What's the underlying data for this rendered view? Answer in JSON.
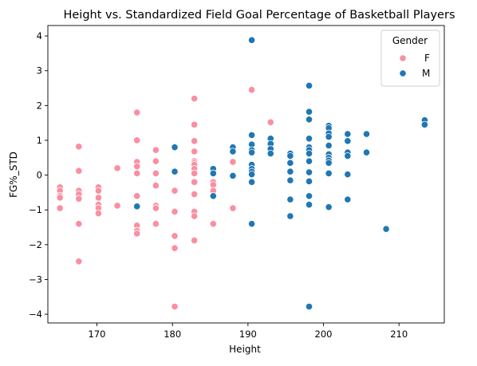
{
  "chart_data": {
    "type": "scatter",
    "title": "Height vs. Standardized Field Goal Percentage of Basketball Players",
    "xlabel": "Height",
    "ylabel": "FG%_STD",
    "xlim": [
      163.5,
      216.0
    ],
    "ylim": [
      -4.25,
      4.3
    ],
    "xticks": [
      170,
      180,
      190,
      200,
      210
    ],
    "yticks": [
      -4,
      -3,
      -2,
      -1,
      0,
      1,
      2,
      3,
      4
    ],
    "grid": false,
    "legend": {
      "title": "Gender",
      "placement": "top-right",
      "entries": [
        {
          "label": "F",
          "color": "#fa8fa1"
        },
        {
          "label": "M",
          "color": "#1f77b4"
        }
      ]
    },
    "series": [
      {
        "name": "F",
        "color": "#fa8fa1",
        "points": [
          [
            165.1,
            -0.35
          ],
          [
            165.1,
            -0.45
          ],
          [
            165.1,
            -0.6
          ],
          [
            165.1,
            -0.65
          ],
          [
            165.1,
            -0.95
          ],
          [
            167.6,
            0.82
          ],
          [
            167.6,
            0.12
          ],
          [
            167.6,
            -0.45
          ],
          [
            167.6,
            -0.55
          ],
          [
            167.6,
            -0.68
          ],
          [
            167.6,
            -1.4
          ],
          [
            167.6,
            -2.48
          ],
          [
            170.2,
            -0.35
          ],
          [
            170.2,
            -0.45
          ],
          [
            170.2,
            -0.65
          ],
          [
            170.2,
            -0.85
          ],
          [
            170.2,
            -0.95
          ],
          [
            170.2,
            -1.1
          ],
          [
            172.7,
            0.2
          ],
          [
            172.7,
            -0.88
          ],
          [
            175.3,
            1.8
          ],
          [
            175.3,
            1.0
          ],
          [
            175.3,
            0.38
          ],
          [
            175.3,
            0.25
          ],
          [
            175.3,
            0.05
          ],
          [
            175.3,
            -0.6
          ],
          [
            175.3,
            -1.45
          ],
          [
            175.3,
            -1.6
          ],
          [
            175.3,
            -1.68
          ],
          [
            177.8,
            0.72
          ],
          [
            177.8,
            0.4
          ],
          [
            177.8,
            0.05
          ],
          [
            177.8,
            -0.3
          ],
          [
            177.8,
            -0.88
          ],
          [
            177.8,
            -0.95
          ],
          [
            177.8,
            -1.4
          ],
          [
            180.3,
            -0.45
          ],
          [
            180.3,
            -1.05
          ],
          [
            180.3,
            -1.75
          ],
          [
            180.3,
            -2.1
          ],
          [
            180.3,
            -3.78
          ],
          [
            182.9,
            2.2
          ],
          [
            182.9,
            1.45
          ],
          [
            182.9,
            0.98
          ],
          [
            182.9,
            0.68
          ],
          [
            182.9,
            0.4
          ],
          [
            182.9,
            0.35
          ],
          [
            182.9,
            0.3
          ],
          [
            182.9,
            0.18
          ],
          [
            182.9,
            0.05
          ],
          [
            182.9,
            -0.2
          ],
          [
            182.9,
            -0.55
          ],
          [
            182.9,
            -1.05
          ],
          [
            182.9,
            -1.18
          ],
          [
            182.9,
            -1.88
          ],
          [
            185.4,
            -0.2
          ],
          [
            185.4,
            -0.28
          ],
          [
            185.4,
            -0.45
          ],
          [
            185.4,
            -1.4
          ],
          [
            188.0,
            0.38
          ],
          [
            188.0,
            -0.95
          ],
          [
            190.5,
            2.45
          ],
          [
            193.0,
            1.52
          ]
        ]
      },
      {
        "name": "M",
        "color": "#1f77b4",
        "points": [
          [
            175.3,
            -0.9
          ],
          [
            180.3,
            0.8
          ],
          [
            180.3,
            0.1
          ],
          [
            185.4,
            0.18
          ],
          [
            185.4,
            0.05
          ],
          [
            185.4,
            -0.6
          ],
          [
            188.0,
            0.8
          ],
          [
            188.0,
            0.68
          ],
          [
            188.0,
            -0.02
          ],
          [
            190.5,
            3.88
          ],
          [
            190.5,
            1.15
          ],
          [
            190.5,
            0.88
          ],
          [
            190.5,
            0.72
          ],
          [
            190.5,
            0.65
          ],
          [
            190.5,
            0.3
          ],
          [
            190.5,
            0.18
          ],
          [
            190.5,
            0.1
          ],
          [
            190.5,
            0.02
          ],
          [
            190.5,
            -0.2
          ],
          [
            190.5,
            -1.4
          ],
          [
            193.0,
            1.05
          ],
          [
            193.0,
            0.9
          ],
          [
            193.0,
            0.75
          ],
          [
            193.0,
            0.62
          ],
          [
            195.6,
            0.62
          ],
          [
            195.6,
            0.55
          ],
          [
            195.6,
            0.35
          ],
          [
            195.6,
            0.1
          ],
          [
            195.6,
            -0.15
          ],
          [
            195.6,
            -0.7
          ],
          [
            195.6,
            -1.18
          ],
          [
            198.1,
            2.57
          ],
          [
            198.1,
            1.82
          ],
          [
            198.1,
            1.6
          ],
          [
            198.1,
            1.05
          ],
          [
            198.1,
            0.8
          ],
          [
            198.1,
            0.72
          ],
          [
            198.1,
            0.62
          ],
          [
            198.1,
            0.4
          ],
          [
            198.1,
            0.08
          ],
          [
            198.1,
            -0.18
          ],
          [
            198.1,
            -0.6
          ],
          [
            198.1,
            -0.85
          ],
          [
            198.1,
            -3.78
          ],
          [
            200.7,
            1.42
          ],
          [
            200.7,
            1.35
          ],
          [
            200.7,
            1.2
          ],
          [
            200.7,
            1.1
          ],
          [
            200.7,
            0.85
          ],
          [
            200.7,
            0.6
          ],
          [
            200.7,
            0.5
          ],
          [
            200.7,
            0.42
          ],
          [
            200.7,
            0.35
          ],
          [
            200.7,
            0.05
          ],
          [
            200.7,
            -0.92
          ],
          [
            203.2,
            1.18
          ],
          [
            203.2,
            0.98
          ],
          [
            203.2,
            0.65
          ],
          [
            203.2,
            0.55
          ],
          [
            203.2,
            0.02
          ],
          [
            203.2,
            -0.7
          ],
          [
            205.7,
            1.18
          ],
          [
            205.7,
            0.65
          ],
          [
            208.3,
            -1.55
          ],
          [
            213.4,
            1.58
          ],
          [
            213.4,
            1.45
          ]
        ]
      }
    ]
  }
}
